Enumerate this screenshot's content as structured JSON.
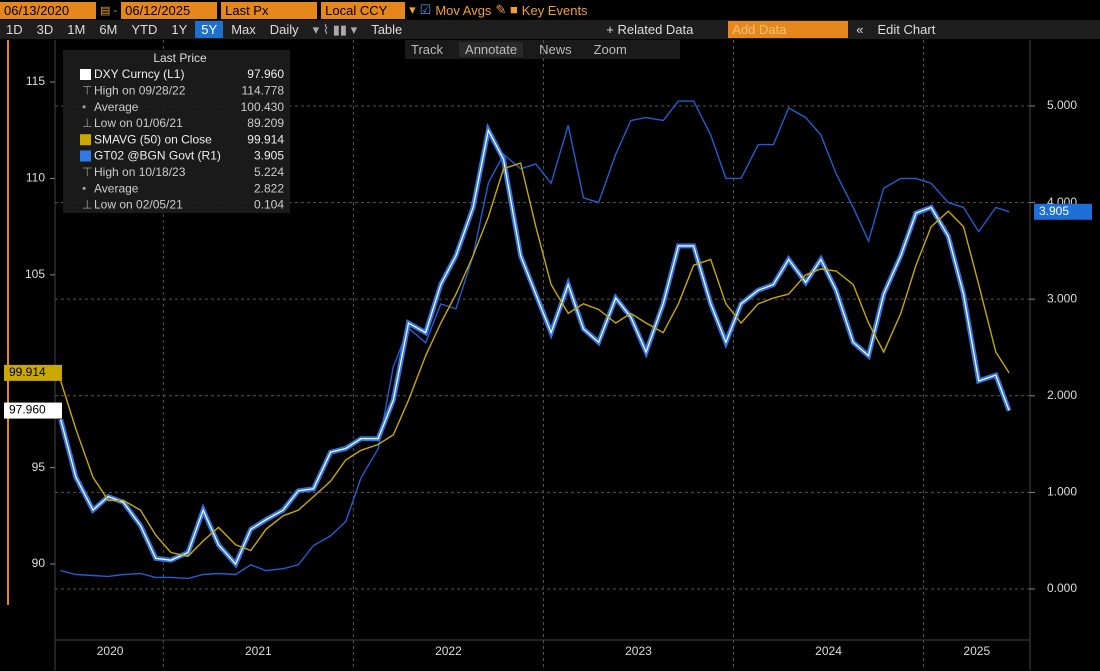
{
  "toolbar": {
    "start_date": "06/13/2020",
    "end_date": "06/12/2025",
    "field": "Last Px",
    "currency": "Local CCY",
    "mov_avgs": "Mov Avgs",
    "key_events": "Key Events",
    "ranges": [
      "1D",
      "3D",
      "1M",
      "6M",
      "YTD",
      "1Y",
      "5Y",
      "Max"
    ],
    "period": "Daily",
    "table": "Table",
    "related": "+ Related Data",
    "add_data": "Add Data",
    "edit": "Edit Chart",
    "tools": [
      "Track",
      "Annotate",
      "News",
      "Zoom"
    ]
  },
  "chart_data": {
    "type": "line",
    "legend_title": "Last Price",
    "x": [
      2020.46,
      2020.54,
      2020.63,
      2020.71,
      2020.79,
      2020.88,
      2020.96,
      2021.04,
      2021.13,
      2021.21,
      2021.29,
      2021.38,
      2021.46,
      2021.54,
      2021.63,
      2021.71,
      2021.79,
      2021.88,
      2021.96,
      2022.04,
      2022.13,
      2022.21,
      2022.29,
      2022.38,
      2022.46,
      2022.54,
      2022.63,
      2022.71,
      2022.79,
      2022.88,
      2022.96,
      2023.04,
      2023.13,
      2023.21,
      2023.29,
      2023.38,
      2023.46,
      2023.54,
      2023.63,
      2023.71,
      2023.79,
      2023.88,
      2023.96,
      2024.04,
      2024.13,
      2024.21,
      2024.29,
      2024.38,
      2024.46,
      2024.54,
      2024.63,
      2024.71,
      2024.79,
      2024.88,
      2024.96,
      2025.04,
      2025.13,
      2025.21,
      2025.29,
      2025.38,
      2025.45
    ],
    "series": [
      {
        "name": "DXY Curncy  (L1)",
        "color": "#ffffff",
        "shadow": "#2f74e0",
        "axis": "y",
        "tag": "97.960",
        "values": [
          97.5,
          94.5,
          92.8,
          93.5,
          93.2,
          92.0,
          90.3,
          90.2,
          90.6,
          92.8,
          91.0,
          90.0,
          91.8,
          92.3,
          92.8,
          93.8,
          93.9,
          95.8,
          96.0,
          96.5,
          96.5,
          98.5,
          102.5,
          102.0,
          104.5,
          106.0,
          108.5,
          112.5,
          111.0,
          106.0,
          104.0,
          102.0,
          104.5,
          102.2,
          101.5,
          103.8,
          102.8,
          101.0,
          103.5,
          106.5,
          106.5,
          103.5,
          101.5,
          103.5,
          104.2,
          104.5,
          105.8,
          104.6,
          105.8,
          104.2,
          101.5,
          100.8,
          104.0,
          106.0,
          108.2,
          108.5,
          107.0,
          104.0,
          99.5,
          99.8,
          97.96
        ],
        "stats": [
          {
            "label": "High on 09/28/22",
            "value": "114.778"
          },
          {
            "label": "Average",
            "value": "100.430"
          },
          {
            "label": "Low on 01/06/21",
            "value": "89.209"
          }
        ]
      },
      {
        "name": "SMAVG (50)  on Close",
        "color": "#c9a900",
        "axis": "y",
        "tag": "99.914",
        "values": [
          99.5,
          97.0,
          94.5,
          93.3,
          93.3,
          92.8,
          91.5,
          90.6,
          90.4,
          91.2,
          91.9,
          91.0,
          90.7,
          91.8,
          92.5,
          92.8,
          93.5,
          94.3,
          95.4,
          95.9,
          96.2,
          96.7,
          98.5,
          100.8,
          102.5,
          104.0,
          106.0,
          108.0,
          110.5,
          110.8,
          107.5,
          104.5,
          103.0,
          103.5,
          103.2,
          102.5,
          103.0,
          102.5,
          102.0,
          103.5,
          105.5,
          105.8,
          103.5,
          102.5,
          103.5,
          103.8,
          104.0,
          105.0,
          105.3,
          105.2,
          104.5,
          102.5,
          101.0,
          103.0,
          105.5,
          107.5,
          108.3,
          107.5,
          104.5,
          101.0,
          99.914
        ],
        "stats": []
      },
      {
        "name": "GT02 @BGN Govt  (R1)",
        "color": "#1f5fd1",
        "axis": "y2",
        "tag": "3.905",
        "values": [
          0.19,
          0.15,
          0.14,
          0.13,
          0.15,
          0.16,
          0.12,
          0.12,
          0.11,
          0.15,
          0.16,
          0.15,
          0.25,
          0.19,
          0.21,
          0.25,
          0.45,
          0.55,
          0.7,
          1.15,
          1.45,
          2.3,
          2.7,
          2.55,
          2.95,
          2.9,
          3.45,
          4.2,
          4.5,
          4.35,
          4.4,
          4.2,
          4.8,
          4.05,
          4.0,
          4.5,
          4.85,
          4.88,
          4.85,
          5.05,
          5.05,
          4.7,
          4.25,
          4.25,
          4.6,
          4.6,
          4.98,
          4.88,
          4.7,
          4.3,
          3.95,
          3.6,
          4.15,
          4.25,
          4.25,
          4.2,
          4.0,
          3.95,
          3.7,
          3.95,
          3.905
        ],
        "stats": [
          {
            "label": "High on 10/18/23",
            "value": "5.224"
          },
          {
            "label": "Average",
            "value": "2.822"
          },
          {
            "label": "Low on 02/05/21",
            "value": "0.104"
          }
        ]
      }
    ],
    "xlim": [
      2020.43,
      2025.56
    ],
    "xticks": [
      {
        "value": 2020.72,
        "label": "2020"
      },
      {
        "value": 2021.5,
        "label": "2021"
      },
      {
        "value": 2022.5,
        "label": "2022"
      },
      {
        "value": 2023.5,
        "label": "2023"
      },
      {
        "value": 2024.5,
        "label": "2024"
      },
      {
        "value": 2025.28,
        "label": "2025"
      }
    ],
    "xgrid": [
      2021,
      2022,
      2023,
      2024,
      2025
    ],
    "ylim": [
      86.06,
      117.18
    ],
    "yticks": [
      90,
      95,
      105,
      110,
      115
    ],
    "y2lim": [
      -0.528,
      5.683
    ],
    "y2ticks": [
      {
        "value": 0,
        "label": "0.000"
      },
      {
        "value": 1,
        "label": "1.000"
      },
      {
        "value": 2,
        "label": "2.000"
      },
      {
        "value": 3,
        "label": "3.000"
      },
      {
        "value": 4,
        "label": "4.000"
      },
      {
        "value": 5,
        "label": "5.000"
      }
    ],
    "grid": true
  }
}
